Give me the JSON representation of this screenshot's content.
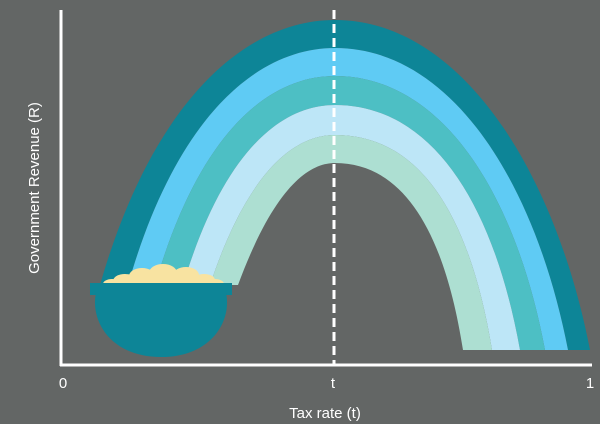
{
  "axes": {
    "x_label": "Tax rate (t)",
    "y_label": "Government Revenue (R)",
    "x_ticks": [
      "0",
      "t",
      "1"
    ]
  },
  "colors": {
    "background": "#636665",
    "axis": "#ffffff",
    "bands": [
      "#0d8597",
      "#5fcbf4",
      "#4dbfc4",
      "#bde6f7",
      "#addfd2"
    ],
    "pot": "#0d8597",
    "gold": "#f8e3a1"
  },
  "chart_data": {
    "type": "line",
    "xlabel": "Tax rate (t)",
    "ylabel": "Government Revenue (R)",
    "x_ticks": [
      "0",
      "t",
      "1"
    ],
    "grid": false
  }
}
